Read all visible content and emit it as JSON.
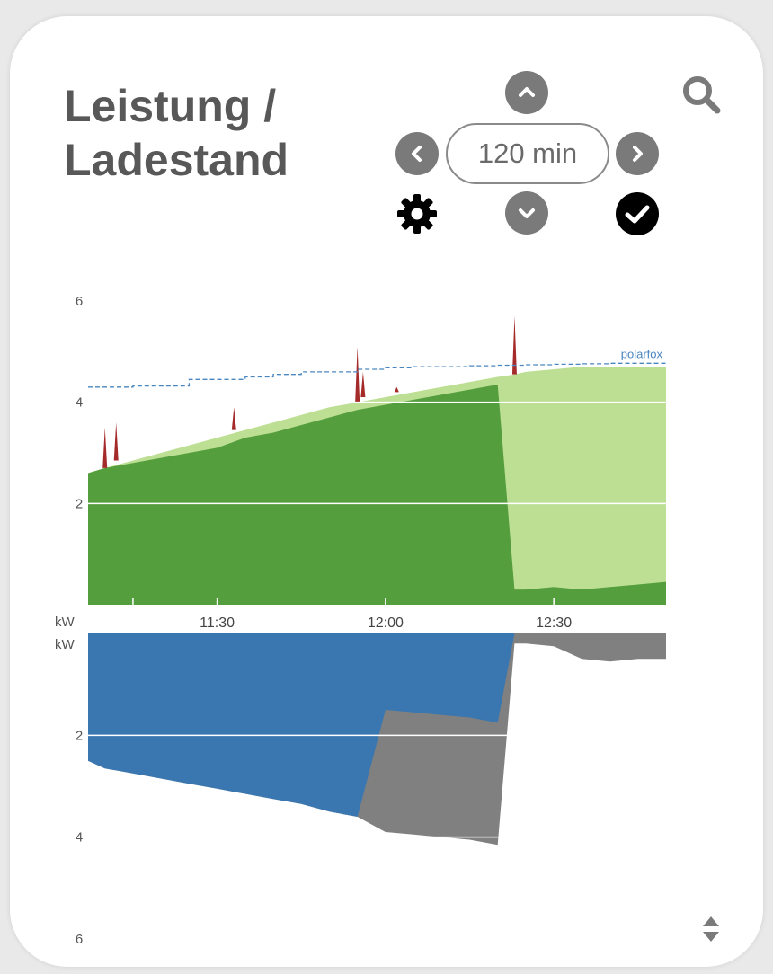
{
  "card": {
    "title_line1": "Leistung /",
    "title_line2": "Ladestand"
  },
  "controls": {
    "time_window": "120 min",
    "icons": [
      "chevron-up-icon",
      "chevron-left-icon",
      "chevron-right-icon",
      "chevron-down-icon",
      "gear-icon",
      "check-circle-icon",
      "search-icon",
      "sort-updown-icon"
    ]
  },
  "colors": {
    "charge_dark": "#559e3d",
    "charge_light": "#bddf94",
    "spike": "#a52a2a",
    "soc_line": "#4a86c0",
    "grid_blue": "#3a76b0",
    "house_gray": "#808080",
    "text": "#585858",
    "icon_gray": "#7a7a7a"
  },
  "chart_data": [
    {
      "type": "area",
      "title": "",
      "ylabel": "kW",
      "ylim": [
        0,
        6
      ],
      "yticks": [
        "2",
        "4",
        "6"
      ],
      "xticks": [
        "11:30",
        "12:00",
        "12:30"
      ],
      "x": [
        "11:07",
        "11:10",
        "11:15",
        "11:20",
        "11:25",
        "11:30",
        "11:35",
        "11:40",
        "11:45",
        "11:50",
        "11:55",
        "12:00",
        "12:05",
        "12:10",
        "12:15",
        "12:20",
        "12:23",
        "12:25",
        "12:30",
        "12:35",
        "12:40",
        "12:45",
        "12:50"
      ],
      "series": [
        {
          "name": "",
          "role": "charging power",
          "values": [
            2.6,
            2.7,
            2.8,
            2.9,
            3.0,
            3.1,
            3.3,
            3.4,
            3.55,
            3.7,
            3.85,
            3.95,
            4.05,
            4.15,
            4.25,
            4.35,
            0.3,
            0.3,
            0.35,
            0.3,
            0.35,
            0.4,
            0.45
          ]
        },
        {
          "name": "",
          "role": "charging envelope",
          "values": [
            2.6,
            2.7,
            2.85,
            3.0,
            3.15,
            3.3,
            3.45,
            3.6,
            3.75,
            3.9,
            4.0,
            4.1,
            4.2,
            4.3,
            4.4,
            4.5,
            4.55,
            4.6,
            4.65,
            4.7,
            4.7,
            4.7,
            4.7
          ]
        },
        {
          "name": "polarfox",
          "role": "state of charge (dashed)",
          "values": [
            4.3,
            4.3,
            4.32,
            4.32,
            4.45,
            4.45,
            4.5,
            4.55,
            4.6,
            4.6,
            4.65,
            4.68,
            4.7,
            4.7,
            4.72,
            4.73,
            4.73,
            4.74,
            4.75,
            4.76,
            4.77,
            4.77,
            4.77
          ]
        }
      ],
      "spikes": [
        {
          "x": "11:10",
          "value": 3.5
        },
        {
          "x": "11:12",
          "value": 3.6
        },
        {
          "x": "11:33",
          "value": 3.9
        },
        {
          "x": "11:55",
          "value": 5.1
        },
        {
          "x": "11:56",
          "value": 4.6
        },
        {
          "x": "12:02",
          "value": 4.3
        },
        {
          "x": "12:23",
          "value": 5.7
        }
      ]
    },
    {
      "type": "area",
      "title": "",
      "ylabel": "kW",
      "ylim": [
        0,
        6
      ],
      "inverted": true,
      "yticks": [
        "2",
        "4",
        "6"
      ],
      "x": [
        "11:07",
        "11:10",
        "11:15",
        "11:20",
        "11:25",
        "11:30",
        "11:35",
        "11:40",
        "11:45",
        "11:50",
        "11:55",
        "12:00",
        "12:05",
        "12:10",
        "12:15",
        "12:20",
        "12:23",
        "12:25",
        "12:30",
        "12:35",
        "12:40",
        "12:45",
        "12:50"
      ],
      "series": [
        {
          "name": "",
          "role": "grid import",
          "values": [
            2.5,
            2.65,
            2.75,
            2.85,
            2.95,
            3.05,
            3.15,
            3.25,
            3.35,
            3.5,
            3.6,
            1.5,
            1.55,
            1.6,
            1.65,
            1.75,
            0,
            0,
            0,
            0,
            0,
            0,
            0
          ]
        },
        {
          "name": "",
          "role": "house consumption",
          "values": [
            2.5,
            2.65,
            2.75,
            2.85,
            2.95,
            3.05,
            3.15,
            3.25,
            3.35,
            3.5,
            3.6,
            3.9,
            3.95,
            4.0,
            4.05,
            4.15,
            0.2,
            0.2,
            0.25,
            0.5,
            0.55,
            0.5,
            0.5
          ]
        }
      ]
    }
  ]
}
